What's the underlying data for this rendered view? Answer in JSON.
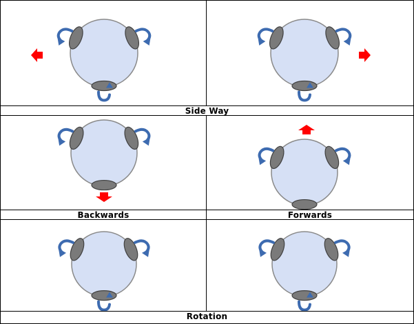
{
  "captions": {
    "side_way": "Side Way",
    "backwards": "Backwards",
    "forwards": "Forwards",
    "rotation": "Rotation"
  },
  "colors": {
    "body_fill": "#d6e0f5",
    "body_stroke": "#8a8a8a",
    "wheel_fill": "#7a7a7a",
    "wheel_stroke": "#404040",
    "rotation_arrow": "#3d6bb0",
    "motion_arrow": "#ff0000"
  },
  "panels": [
    {
      "id": "side-left",
      "motion": "left",
      "spin": [
        "ccw",
        "cw",
        "ccw"
      ]
    },
    {
      "id": "side-right",
      "motion": "right",
      "spin": [
        "ccw",
        "cw",
        "ccw"
      ]
    },
    {
      "id": "backwards",
      "motion": "down",
      "spin": [
        "ccw",
        "cw",
        "none"
      ]
    },
    {
      "id": "forwards",
      "motion": "up",
      "spin": [
        "ccw",
        "cw",
        "none"
      ]
    },
    {
      "id": "rotation-1",
      "motion": "none",
      "spin": [
        "ccw",
        "cw",
        "ccw"
      ]
    },
    {
      "id": "rotation-2",
      "motion": "none",
      "spin": [
        "ccw",
        "cw",
        "ccw"
      ]
    }
  ]
}
